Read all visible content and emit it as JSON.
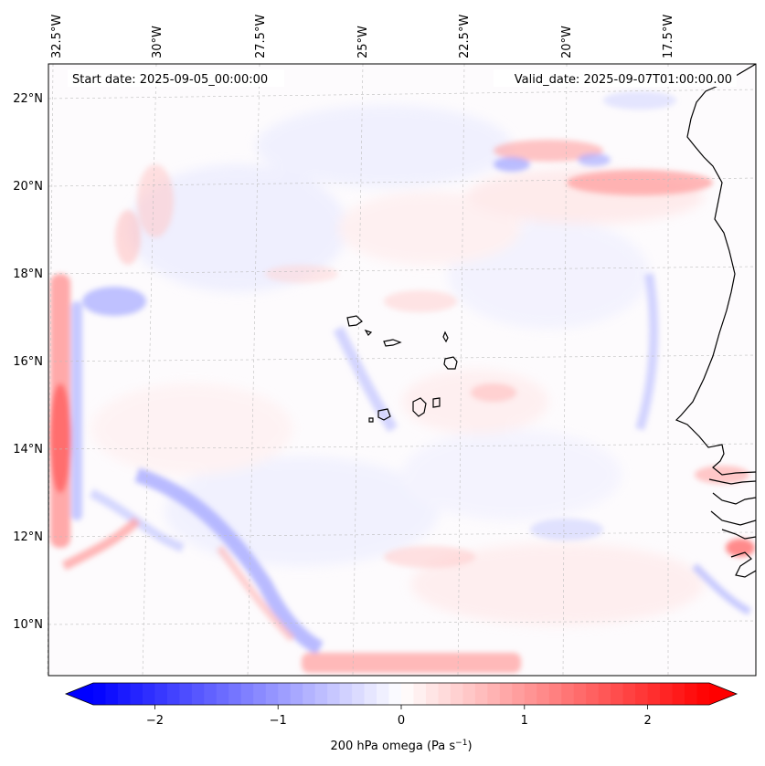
{
  "map": {
    "start_label": "Start date: 2025-09-05_00:00:00",
    "valid_label": "Valid_date: 2025-09-07T01:00:00.00",
    "lon_labels": [
      "32.5°W",
      "30°W",
      "27.5°W",
      "25°W",
      "22.5°W",
      "20°W",
      "17.5°W"
    ],
    "lat_labels": [
      "22°N",
      "20°N",
      "18°N",
      "16°N",
      "14°N",
      "12°N",
      "10°N"
    ],
    "gridline_color": "#b0b0b0",
    "coast_color": "#000000"
  },
  "colorbar": {
    "ticks": [
      "−2",
      "−1",
      "0",
      "1",
      "2"
    ],
    "tick_values": [
      -2,
      -1,
      0,
      1,
      2
    ],
    "range": [
      -2.5,
      2.5
    ],
    "label": "200 hPa omega (Pa s",
    "label_exp": "−1",
    "label_end": ")",
    "colormap": "bwr",
    "low_color": "#0000ff",
    "mid_color": "#ffffff",
    "high_color": "#ff0000"
  }
}
